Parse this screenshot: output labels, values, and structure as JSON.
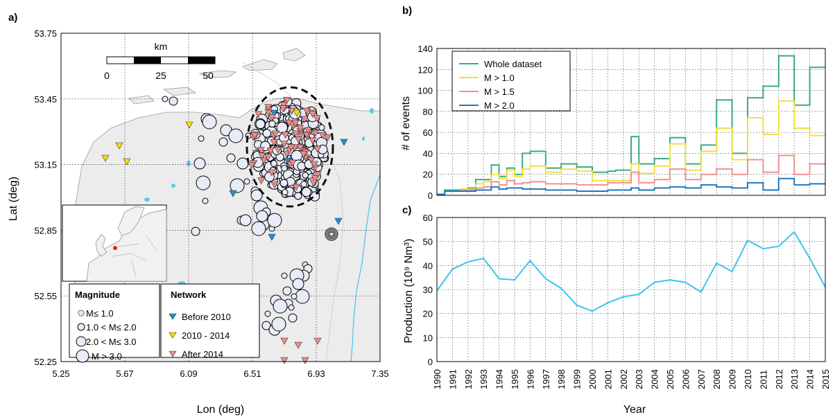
{
  "panels": {
    "a": "a)",
    "b": "b)",
    "c": "c)"
  },
  "map": {
    "xlabel": "Lon (deg)",
    "ylabel": "Lat (deg)",
    "xticks": [
      "5.25",
      "5.67",
      "6.09",
      "6.51",
      "6.93",
      "7.35"
    ],
    "yticks": [
      "53.75",
      "53.45",
      "53.15",
      "52.85",
      "52.55",
      "52.25"
    ],
    "scalebar": {
      "unit": "km",
      "labels": [
        "0",
        "25",
        "50"
      ]
    },
    "legend_magnitude": {
      "title": "Magnitude",
      "items": [
        "M≤ 1.0",
        "1.0 < M≤ 2.0",
        "2.0 < M≤ 3.0",
        "M > 3.0"
      ]
    },
    "legend_network": {
      "title": "Network",
      "items": [
        {
          "label": "Before 2010",
          "color": "#1f8fd6"
        },
        {
          "label": "2010 - 2014",
          "color": "#f7e000"
        },
        {
          "label": "After 2014",
          "color": "#ef8b8b"
        }
      ]
    },
    "colors": {
      "land": "#ececec",
      "water": "#5bc8e8",
      "event_fill": "#e8ecf6"
    }
  },
  "chart_data": [
    {
      "type": "line",
      "step": "post",
      "xlabel": "",
      "ylabel": "# of events",
      "ylim": [
        0,
        140
      ],
      "xlim": [
        1990,
        2015
      ],
      "yticks": [
        "0",
        "20",
        "40",
        "60",
        "80",
        "100",
        "120",
        "140"
      ],
      "grid": true,
      "legend_position": "top-left",
      "x": [
        1990,
        1990.5,
        1991,
        1991.5,
        1992,
        1992.5,
        1993,
        1993.5,
        1994,
        1994.5,
        1995,
        1995.5,
        1996,
        1996.5,
        1997,
        1997.5,
        1998,
        1998.5,
        1999,
        1999.5,
        2000,
        2000.5,
        2001,
        2001.5,
        2002,
        2002.5,
        2003,
        2003.5,
        2004,
        2004.5,
        2005,
        2005.5,
        2006,
        2006.5,
        2007,
        2007.5,
        2008,
        2008.5,
        2009,
        2009.5,
        2010,
        2010.5,
        2011,
        2011.5,
        2012,
        2012.5,
        2013,
        2013.5,
        2014,
        2014.5
      ],
      "series": [
        {
          "name": "Whole dataset",
          "color": "#3aaa7e",
          "values": [
            1,
            5,
            5,
            6,
            7,
            15,
            15,
            29,
            18,
            26,
            20,
            40,
            42,
            42,
            26,
            26,
            30,
            30,
            27,
            27,
            22,
            22,
            23,
            24,
            24,
            56,
            30,
            30,
            35,
            35,
            55,
            55,
            30,
            30,
            48,
            48,
            91,
            91,
            40,
            40,
            93,
            93,
            104,
            104,
            133,
            133,
            86,
            86,
            122,
            122
          ]
        },
        {
          "name": "M > 1.0",
          "color": "#f0e040",
          "values": [
            1,
            4,
            4,
            6,
            6,
            11,
            13,
            20,
            16,
            24,
            18,
            25,
            28,
            28,
            22,
            22,
            25,
            25,
            23,
            23,
            14,
            14,
            14,
            14,
            14,
            30,
            21,
            21,
            28,
            28,
            49,
            49,
            24,
            24,
            42,
            42,
            64,
            64,
            34,
            34,
            74,
            74,
            58,
            58,
            90,
            90,
            64,
            64,
            57,
            57
          ]
        },
        {
          "name": "M > 1.5",
          "color": "#f0908e",
          "values": [
            1,
            4,
            4,
            5,
            5,
            7,
            8,
            13,
            10,
            14,
            11,
            12,
            13,
            13,
            11,
            11,
            11,
            11,
            10,
            10,
            10,
            10,
            12,
            12,
            12,
            22,
            12,
            12,
            15,
            15,
            25,
            25,
            15,
            15,
            20,
            20,
            25,
            25,
            20,
            20,
            34,
            34,
            22,
            22,
            38,
            38,
            20,
            20,
            30,
            30
          ]
        },
        {
          "name": "M > 2.0",
          "color": "#1f78c1",
          "values": [
            1,
            4,
            4,
            4,
            4,
            5,
            5,
            8,
            6,
            7,
            7,
            6,
            6,
            6,
            5,
            5,
            5,
            5,
            4,
            4,
            4,
            4,
            5,
            5,
            5,
            7,
            5,
            5,
            7,
            7,
            8,
            8,
            7,
            7,
            10,
            10,
            8,
            8,
            7,
            7,
            12,
            12,
            5,
            5,
            16,
            16,
            10,
            10,
            11,
            11
          ]
        }
      ]
    },
    {
      "type": "line",
      "xlabel": "Year",
      "ylabel": "Production (10⁹ Nm³)",
      "ylim": [
        0,
        60
      ],
      "xlim": [
        1990,
        2015
      ],
      "yticks": [
        "0",
        "10",
        "20",
        "30",
        "40",
        "50",
        "60"
      ],
      "grid": true,
      "categories": [
        "1990",
        "1991",
        "1992",
        "1993",
        "1994",
        "1995",
        "1996",
        "1997",
        "1998",
        "1999",
        "2000",
        "2001",
        "2002",
        "2003",
        "2004",
        "2005",
        "2006",
        "2007",
        "2008",
        "2009",
        "2010",
        "2011",
        "2012",
        "2013",
        "2014",
        "2015"
      ],
      "series": [
        {
          "color": "#3ec5ea",
          "values": [
            29.5,
            38.5,
            41.5,
            43,
            34.5,
            34,
            42,
            34.5,
            30.5,
            23.5,
            21,
            24.5,
            27,
            28,
            33,
            34,
            33,
            29,
            41,
            37.5,
            50.5,
            47,
            48,
            54,
            43,
            31
          ]
        }
      ]
    }
  ]
}
